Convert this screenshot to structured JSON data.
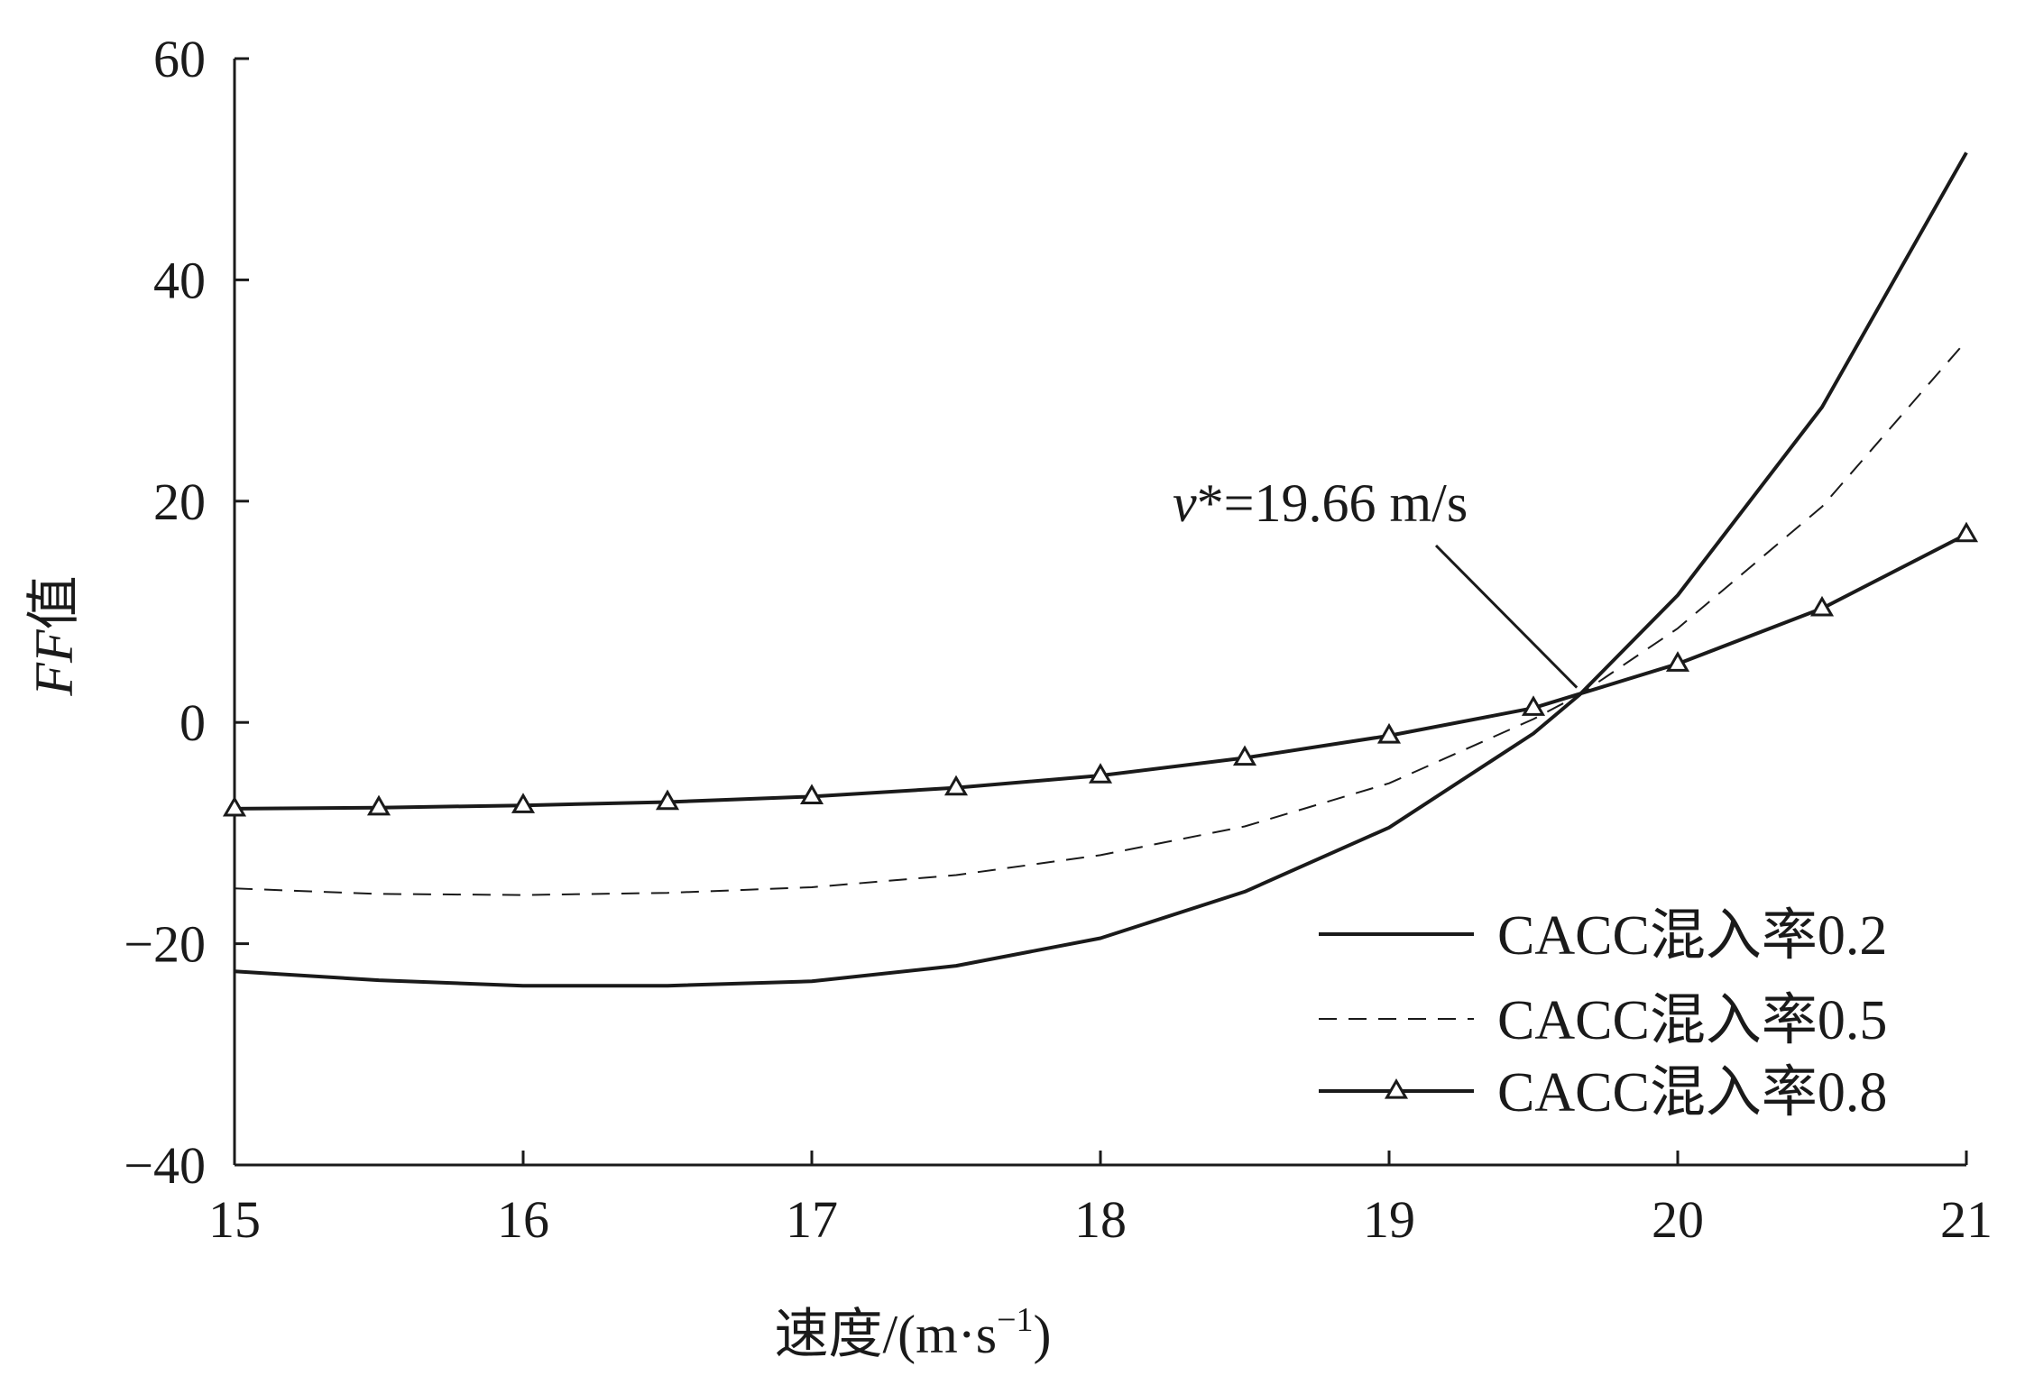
{
  "chart_data": {
    "type": "line",
    "xlabel": "速度/(m·s",
    "xlabel_sup": "−1",
    "xlabel_close": ")",
    "ylabel_italic": "FF",
    "ylabel_suffix": "值",
    "xlim": [
      15,
      21
    ],
    "ylim": [
      -40,
      60
    ],
    "x_ticks": [
      15,
      16,
      17,
      18,
      19,
      20,
      21
    ],
    "x_tick_labels": [
      "15",
      "16",
      "17",
      "18",
      "19",
      "20",
      "21"
    ],
    "y_ticks": [
      -40,
      -20,
      0,
      20,
      40,
      60
    ],
    "y_tick_labels": [
      "−40",
      "−20",
      "0",
      "20",
      "40",
      "60"
    ],
    "grid": false,
    "legend_position": "bottom-right",
    "series": [
      {
        "name": "CACC混入率0.2",
        "style": "solid",
        "marker": "none",
        "x": [
          15,
          15.5,
          16,
          16.5,
          17,
          17.5,
          18,
          18.5,
          19,
          19.5,
          19.66,
          20,
          20.5,
          21
        ],
        "y": [
          -22.5,
          -23.3,
          -23.8,
          -23.8,
          -23.4,
          -22.0,
          -19.5,
          -15.3,
          -9.5,
          -1.0,
          2.5,
          11.5,
          28.5,
          51.5
        ]
      },
      {
        "name": "CACC混入率0.5",
        "style": "dashed",
        "marker": "none",
        "x": [
          15,
          15.5,
          16,
          16.5,
          17,
          17.5,
          18,
          18.5,
          19,
          19.5,
          19.66,
          20,
          20.5,
          21
        ],
        "y": [
          -15.0,
          -15.5,
          -15.6,
          -15.4,
          -14.9,
          -13.8,
          -12.0,
          -9.4,
          -5.5,
          0.3,
          2.5,
          8.5,
          19.5,
          34.5
        ]
      },
      {
        "name": "CACC混入率0.8",
        "style": "solid",
        "marker": "triangle",
        "x": [
          15,
          15.5,
          16,
          16.5,
          17,
          17.5,
          18,
          18.5,
          19,
          19.5,
          20,
          20.5,
          21
        ],
        "y": [
          -7.8,
          -7.7,
          -7.5,
          -7.2,
          -6.7,
          -5.9,
          -4.8,
          -3.2,
          -1.2,
          1.3,
          5.3,
          10.3,
          17.0
        ]
      }
    ],
    "annotation": {
      "italic": "v",
      "text": "*=19.66 m/s",
      "target_x": 19.66,
      "target_y": 2.5
    }
  }
}
